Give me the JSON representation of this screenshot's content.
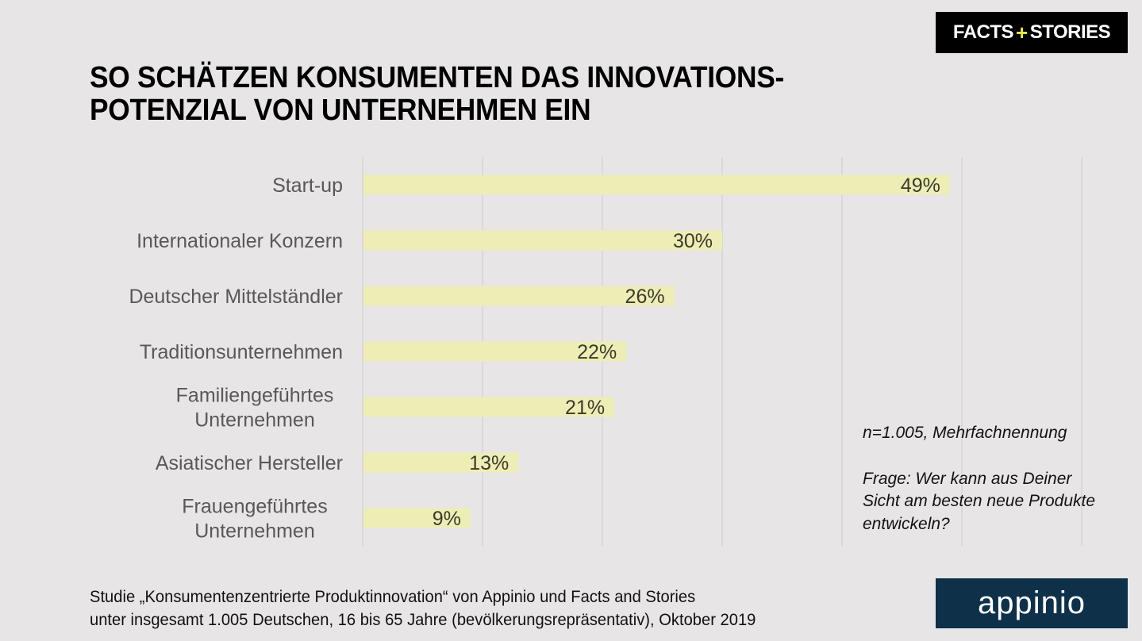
{
  "header": {
    "logo_left": "FACTS",
    "logo_plus": "+",
    "logo_right": "STORIES",
    "title_line1": "SO SCHÄTZEN KONSUMENTEN DAS INNOVATIONS-",
    "title_line2": "POTENZIAL VON UNTERNEHMEN EIN"
  },
  "chart_data": {
    "type": "bar",
    "orientation": "horizontal",
    "title": "SO SCHÄTZEN KONSUMENTEN DAS INNOVATIONS-POTENZIAL VON UNTERNEHMEN EIN",
    "categories": [
      [
        "Start-up"
      ],
      [
        "Internationaler Konzern"
      ],
      [
        "Deutscher Mittelständler"
      ],
      [
        "Traditionsunternehmen"
      ],
      [
        "Familiengeführtes",
        "Unternehmen"
      ],
      [
        "Asiatischer Hersteller"
      ],
      [
        "Frauengeführtes",
        "Unternehmen"
      ]
    ],
    "values": [
      49,
      30,
      26,
      22,
      21,
      13,
      9
    ],
    "value_labels": [
      "49%",
      "30%",
      "26%",
      "22%",
      "21%",
      "13%",
      "9%"
    ],
    "xlim": [
      0,
      60
    ],
    "grid_step": 10,
    "grid": true,
    "xlabel": "",
    "ylabel": "",
    "unit": "%",
    "bar_color": "#ededb6",
    "legend": "none"
  },
  "notes": {
    "sample": "n=1.005, Mehrfachnennung",
    "question_line1": "Frage: Wer kann aus Deiner",
    "question_line2": "Sicht am besten neue Produkte",
    "question_line3": "entwickeln?"
  },
  "footer": {
    "source_line1": "Studie „Konsumentenzentrierte Produktinnovation“ von Appinio und Facts and Stories",
    "source_line2": "unter insgesamt 1.005 Deutschen, 16 bis 65 Jahre (bevölkerungsrepräsentativ), Oktober 2019",
    "appinio_logo": "appinio"
  },
  "colors": {
    "background": "#e8e5e6",
    "bar": "#ededb6",
    "gridline": "#d6d3d4",
    "appinio_bg": "#0e3049",
    "fs_plus": "#e6e84a"
  }
}
